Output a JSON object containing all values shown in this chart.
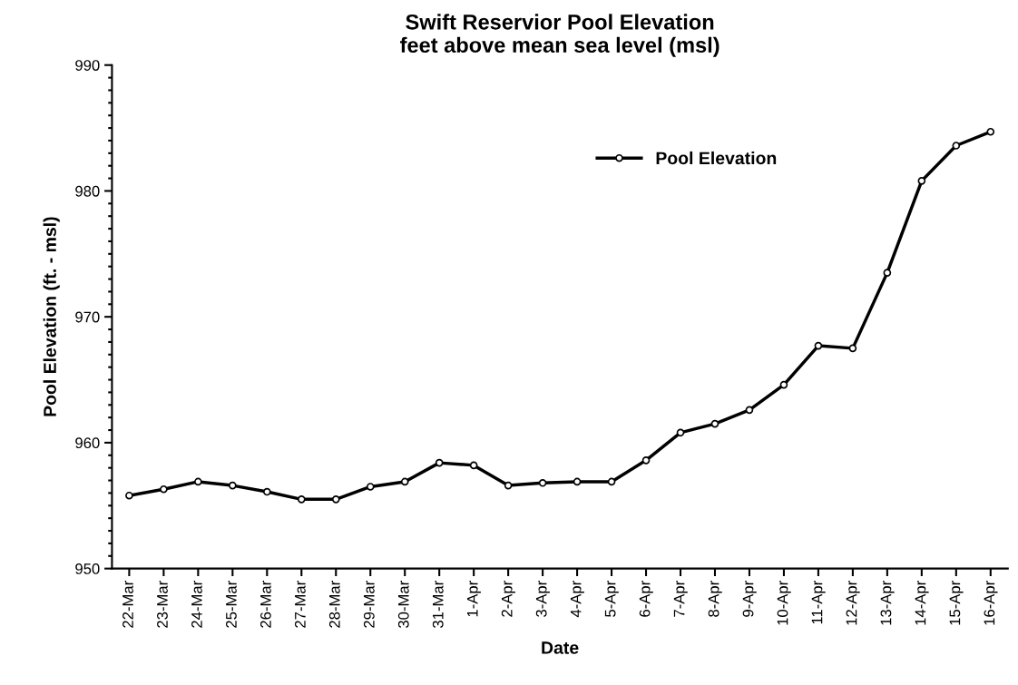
{
  "chart_data": {
    "type": "line",
    "title": "Swift Reservior Pool Elevation\nfeet above mean sea level (msl)",
    "xlabel": "Date",
    "ylabel": "Pool Elevation (ft. - msl)",
    "categories": [
      "22-Mar",
      "23-Mar",
      "24-Mar",
      "25-Mar",
      "26-Mar",
      "27-Mar",
      "28-Mar",
      "29-Mar",
      "30-Mar",
      "31-Mar",
      "1-Apr",
      "2-Apr",
      "3-Apr",
      "4-Apr",
      "5-Apr",
      "6-Apr",
      "7-Apr",
      "8-Apr",
      "9-Apr",
      "10-Apr",
      "11-Apr",
      "12-Apr",
      "13-Apr",
      "14-Apr",
      "15-Apr",
      "16-Apr"
    ],
    "series": [
      {
        "name": "Pool Elevation",
        "color": "#000000",
        "values": [
          955.8,
          956.3,
          956.9,
          956.6,
          956.1,
          955.5,
          955.5,
          956.5,
          956.9,
          958.4,
          958.2,
          956.6,
          956.8,
          956.9,
          956.9,
          958.6,
          960.8,
          961.5,
          962.6,
          964.6,
          967.7,
          967.5,
          973.5,
          980.8,
          983.6,
          984.7
        ]
      }
    ],
    "ylim": [
      950,
      990
    ],
    "yticks": [
      950,
      960,
      970,
      980,
      990
    ],
    "grid": false,
    "legend": "top right",
    "marker": "circle",
    "line_style": "solid"
  }
}
